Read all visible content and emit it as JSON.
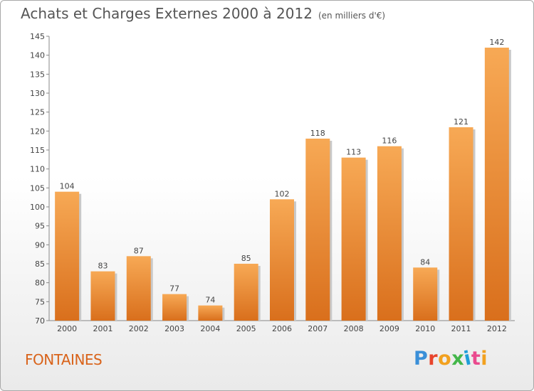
{
  "header": {
    "title": "Achats et Charges Externes 2000 à 2012",
    "subtitle": "(en milliers d'€)"
  },
  "footer": {
    "city": "FONTAINES",
    "logo_text": "Proxiti",
    "logo_colors": [
      "#3a8fd8",
      "#e8442c",
      "#f2a11f",
      "#43b649",
      "#1f9ed8",
      "#ea4a8e",
      "#f2a11f"
    ]
  },
  "colors": {
    "bar_top": "#f7a955",
    "bar_bottom": "#d96f1c",
    "bar_shadow": "#c9c9c9",
    "city": "#d9631a"
  },
  "chart_data": {
    "type": "bar",
    "title": "Achats et Charges Externes 2000 à 2012",
    "subtitle": "(en milliers d'€)",
    "categories": [
      "2000",
      "2001",
      "2002",
      "2003",
      "2004",
      "2005",
      "2006",
      "2007",
      "2008",
      "2009",
      "2010",
      "2011",
      "2012"
    ],
    "values": [
      104,
      83,
      87,
      77,
      74,
      85,
      102,
      118,
      113,
      116,
      84,
      121,
      142
    ],
    "ylim": [
      70,
      145
    ],
    "yticks": [
      70,
      75,
      80,
      85,
      90,
      95,
      100,
      105,
      110,
      115,
      120,
      125,
      130,
      135,
      140,
      145
    ],
    "grid": false,
    "legend": "none"
  }
}
